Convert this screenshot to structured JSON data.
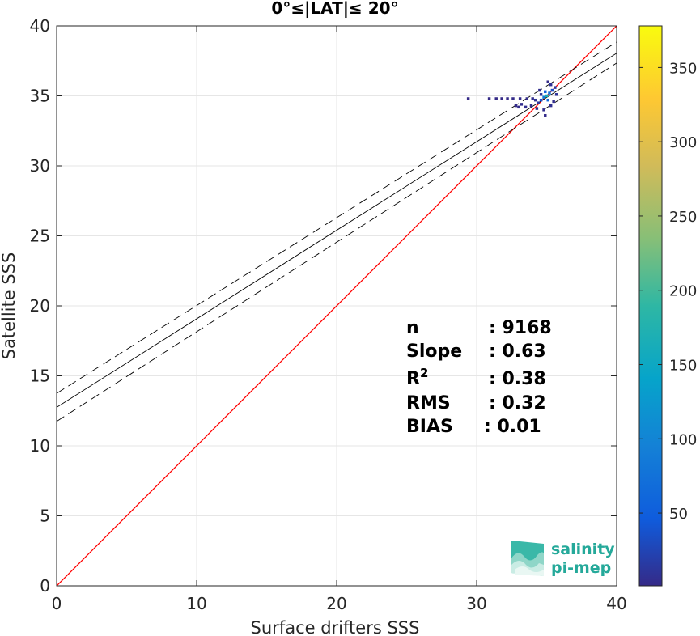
{
  "chart_data": {
    "type": "heatmap",
    "title": "0°≤|LAT|≤ 20°",
    "xlabel": "Surface drifters SSS",
    "ylabel": "Satellite SSS",
    "xlim": [
      0,
      40
    ],
    "ylim": [
      0,
      40
    ],
    "xticks": [
      "0",
      "10",
      "20",
      "30",
      "40"
    ],
    "yticks": [
      "0",
      "5",
      "10",
      "15",
      "20",
      "25",
      "30",
      "35",
      "40"
    ],
    "grid": true,
    "colorbar": {
      "range": [
        1,
        378
      ],
      "ticks": [
        "50",
        "100",
        "150",
        "200",
        "250",
        "300",
        "350"
      ],
      "colormap": "parula"
    },
    "lines": [
      {
        "name": "identity",
        "color": "#ff0000",
        "style": "solid",
        "points": [
          [
            0,
            0
          ],
          [
            40,
            40
          ]
        ]
      },
      {
        "name": "regression",
        "color": "#000000",
        "style": "solid",
        "points": [
          [
            0,
            12.75
          ],
          [
            40,
            38.05
          ]
        ]
      },
      {
        "name": "upper-bound",
        "color": "#000000",
        "style": "dashed",
        "points": [
          [
            0,
            13.75
          ],
          [
            40,
            38.85
          ]
        ]
      },
      {
        "name": "lower-bound",
        "color": "#000000",
        "style": "dashed",
        "points": [
          [
            0,
            11.75
          ],
          [
            40,
            37.35
          ]
        ]
      }
    ],
    "density_points": [
      {
        "x": 35.0,
        "y": 35.0,
        "count": 160
      },
      {
        "x": 34.8,
        "y": 34.9,
        "count": 90
      },
      {
        "x": 35.2,
        "y": 35.2,
        "count": 80
      },
      {
        "x": 34.6,
        "y": 34.7,
        "count": 40
      },
      {
        "x": 35.4,
        "y": 35.4,
        "count": 35
      },
      {
        "x": 35.1,
        "y": 34.7,
        "count": 60
      },
      {
        "x": 34.9,
        "y": 35.3,
        "count": 50
      },
      {
        "x": 34.4,
        "y": 34.5,
        "count": 15
      },
      {
        "x": 34.2,
        "y": 34.7,
        "count": 8
      },
      {
        "x": 33.9,
        "y": 34.3,
        "count": 6
      },
      {
        "x": 33.5,
        "y": 34.2,
        "count": 5
      },
      {
        "x": 33.2,
        "y": 34.4,
        "count": 4
      },
      {
        "x": 33.0,
        "y": 34.2,
        "count": 3
      },
      {
        "x": 32.8,
        "y": 34.3,
        "count": 2
      },
      {
        "x": 34.6,
        "y": 35.1,
        "count": 10
      },
      {
        "x": 34.0,
        "y": 34.8,
        "count": 5
      },
      {
        "x": 33.6,
        "y": 34.8,
        "count": 3
      },
      {
        "x": 33.1,
        "y": 34.8,
        "count": 2
      },
      {
        "x": 32.6,
        "y": 34.8,
        "count": 2
      },
      {
        "x": 32.2,
        "y": 34.8,
        "count": 1
      },
      {
        "x": 31.8,
        "y": 34.8,
        "count": 1
      },
      {
        "x": 31.4,
        "y": 34.8,
        "count": 1
      },
      {
        "x": 30.9,
        "y": 34.8,
        "count": 1
      },
      {
        "x": 29.4,
        "y": 34.8,
        "count": 1
      },
      {
        "x": 35.3,
        "y": 34.3,
        "count": 6
      },
      {
        "x": 34.8,
        "y": 34.0,
        "count": 4
      },
      {
        "x": 34.9,
        "y": 33.6,
        "count": 2
      },
      {
        "x": 35.6,
        "y": 35.6,
        "count": 12
      },
      {
        "x": 35.3,
        "y": 35.8,
        "count": 8
      },
      {
        "x": 35.7,
        "y": 35.1,
        "count": 9
      },
      {
        "x": 35.5,
        "y": 34.6,
        "count": 5
      },
      {
        "x": 34.5,
        "y": 35.4,
        "count": 4
      },
      {
        "x": 34.3,
        "y": 34.1,
        "count": 3
      },
      {
        "x": 35.1,
        "y": 36.0,
        "count": 2
      }
    ],
    "stats": [
      {
        "label": "n",
        "sup": "",
        "value": ": 9168"
      },
      {
        "label": "Slope",
        "sup": "",
        "value": ": 0.63"
      },
      {
        "label": "R",
        "sup": "2",
        "value": ": 0.38"
      },
      {
        "label": "RMS",
        "sup": "",
        "value": ": 0.32"
      },
      {
        "label": "BIAS",
        "sup": "",
        "value": ": 0.01"
      }
    ]
  },
  "logo": {
    "line1": "salinity",
    "line2": "pi-mep",
    "color": "#25a99a"
  }
}
